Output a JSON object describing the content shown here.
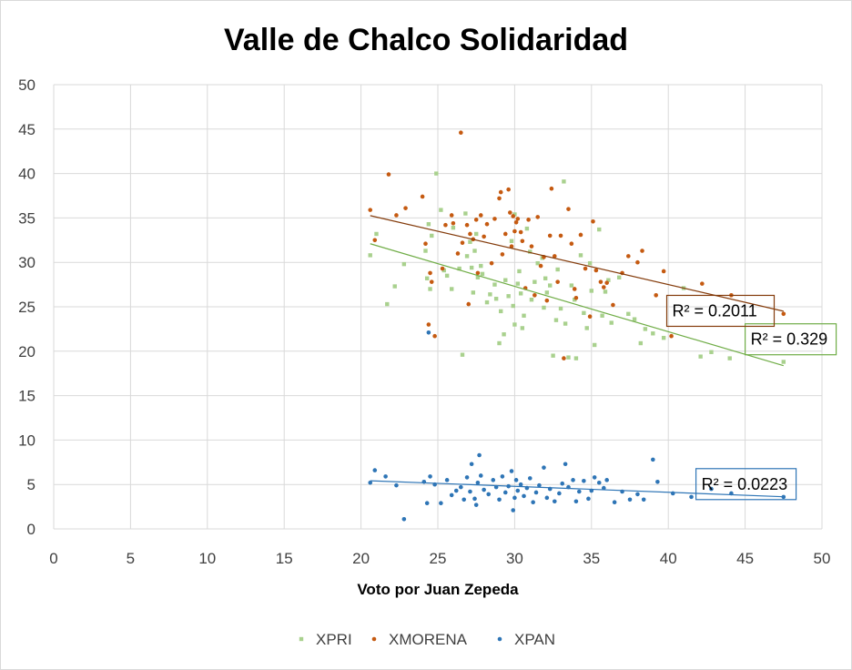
{
  "chart_data": {
    "type": "scatter",
    "title": "Valle de Chalco Solidaridad",
    "xlabel": "Voto por Juan Zepeda",
    "ylabel": "",
    "xlim": [
      0,
      50
    ],
    "ylim": [
      0,
      50
    ],
    "xticks": [
      "0",
      "5",
      "10",
      "15",
      "20",
      "25",
      "30",
      "35",
      "40",
      "45",
      "50"
    ],
    "yticks": [
      "0",
      "5",
      "10",
      "15",
      "20",
      "25",
      "30",
      "35",
      "40",
      "45",
      "50"
    ],
    "grid": true,
    "legend_position": "bottom",
    "series": [
      {
        "name": "XPRI",
        "color": "#a9d18e",
        "marker": "square",
        "trendline": {
          "slope": -0.51,
          "intercept": 42.6,
          "x_range": [
            20.6,
            47.5
          ],
          "color": "#70ad47"
        },
        "r2_label": "R² = 0.329",
        "points": [
          [
            20.6,
            30.8
          ],
          [
            21.0,
            33.2
          ],
          [
            21.7,
            25.3
          ],
          [
            22.2,
            27.3
          ],
          [
            22.8,
            29.8
          ],
          [
            24.2,
            31.3
          ],
          [
            24.3,
            28.2
          ],
          [
            24.4,
            34.3
          ],
          [
            24.5,
            27.0
          ],
          [
            24.6,
            33.0
          ],
          [
            24.9,
            40.0
          ],
          [
            25.2,
            35.9
          ],
          [
            25.4,
            29.1
          ],
          [
            25.6,
            28.5
          ],
          [
            25.9,
            27.0
          ],
          [
            26.0,
            33.9
          ],
          [
            26.4,
            29.3
          ],
          [
            26.6,
            19.6
          ],
          [
            26.8,
            35.5
          ],
          [
            26.9,
            30.7
          ],
          [
            27.1,
            32.3
          ],
          [
            27.2,
            29.4
          ],
          [
            27.3,
            26.6
          ],
          [
            27.4,
            31.3
          ],
          [
            27.5,
            33.2
          ],
          [
            27.6,
            28.3
          ],
          [
            27.8,
            29.6
          ],
          [
            27.9,
            28.7
          ],
          [
            28.2,
            25.5
          ],
          [
            28.4,
            26.4
          ],
          [
            28.7,
            27.5
          ],
          [
            28.8,
            25.9
          ],
          [
            29.0,
            20.9
          ],
          [
            29.1,
            24.5
          ],
          [
            29.3,
            21.9
          ],
          [
            29.4,
            28.0
          ],
          [
            29.6,
            26.2
          ],
          [
            29.8,
            32.4
          ],
          [
            29.9,
            25.1
          ],
          [
            30.0,
            23.0
          ],
          [
            30.0,
            35.4
          ],
          [
            30.2,
            27.6
          ],
          [
            30.3,
            29.0
          ],
          [
            30.4,
            26.5
          ],
          [
            30.5,
            22.6
          ],
          [
            30.6,
            24.0
          ],
          [
            30.8,
            33.8
          ],
          [
            31.0,
            31.2
          ],
          [
            31.1,
            25.8
          ],
          [
            31.3,
            27.8
          ],
          [
            31.5,
            29.9
          ],
          [
            31.8,
            30.5
          ],
          [
            31.9,
            24.9
          ],
          [
            32.0,
            28.2
          ],
          [
            32.1,
            26.6
          ],
          [
            32.3,
            27.4
          ],
          [
            32.5,
            19.5
          ],
          [
            32.7,
            23.5
          ],
          [
            32.8,
            29.2
          ],
          [
            33.0,
            24.8
          ],
          [
            33.2,
            39.1
          ],
          [
            33.3,
            23.1
          ],
          [
            33.5,
            19.3
          ],
          [
            33.7,
            27.4
          ],
          [
            33.9,
            25.8
          ],
          [
            34.0,
            19.2
          ],
          [
            34.3,
            30.8
          ],
          [
            34.5,
            24.3
          ],
          [
            34.7,
            22.6
          ],
          [
            34.9,
            29.9
          ],
          [
            35.0,
            26.8
          ],
          [
            35.2,
            20.7
          ],
          [
            35.5,
            33.7
          ],
          [
            35.7,
            24.0
          ],
          [
            35.9,
            26.7
          ],
          [
            36.1,
            28.0
          ],
          [
            36.3,
            23.2
          ],
          [
            36.8,
            28.3
          ],
          [
            37.4,
            24.2
          ],
          [
            37.8,
            23.6
          ],
          [
            38.2,
            20.9
          ],
          [
            38.5,
            22.5
          ],
          [
            39.0,
            22.0
          ],
          [
            39.7,
            21.5
          ],
          [
            41.0,
            27.1
          ],
          [
            42.1,
            19.4
          ],
          [
            42.8,
            19.9
          ],
          [
            44.0,
            19.2
          ],
          [
            47.5,
            18.8
          ]
        ]
      },
      {
        "name": "XMORENA",
        "color": "#c55a11",
        "marker": "circle",
        "trendline": {
          "slope": -0.4,
          "intercept": 43.5,
          "x_range": [
            20.6,
            47.5
          ],
          "color": "#843c0c"
        },
        "r2_label": "R² = 0.2011",
        "points": [
          [
            20.6,
            35.9
          ],
          [
            20.9,
            32.5
          ],
          [
            21.8,
            39.9
          ],
          [
            22.3,
            35.3
          ],
          [
            22.9,
            36.1
          ],
          [
            24.0,
            37.4
          ],
          [
            24.2,
            32.1
          ],
          [
            24.4,
            23.0
          ],
          [
            24.5,
            28.8
          ],
          [
            24.6,
            27.8
          ],
          [
            24.8,
            21.7
          ],
          [
            25.3,
            29.3
          ],
          [
            25.5,
            34.2
          ],
          [
            25.9,
            35.3
          ],
          [
            26.0,
            34.4
          ],
          [
            26.3,
            31.0
          ],
          [
            26.5,
            44.6
          ],
          [
            26.6,
            32.2
          ],
          [
            26.9,
            34.2
          ],
          [
            27.0,
            25.3
          ],
          [
            27.1,
            33.2
          ],
          [
            27.3,
            32.6
          ],
          [
            27.5,
            34.8
          ],
          [
            27.6,
            28.8
          ],
          [
            27.8,
            35.3
          ],
          [
            28.0,
            32.9
          ],
          [
            28.2,
            34.3
          ],
          [
            28.5,
            29.9
          ],
          [
            28.7,
            34.9
          ],
          [
            29.0,
            37.2
          ],
          [
            29.1,
            37.9
          ],
          [
            29.2,
            30.9
          ],
          [
            29.4,
            33.2
          ],
          [
            29.6,
            38.2
          ],
          [
            29.7,
            35.6
          ],
          [
            29.8,
            31.8
          ],
          [
            29.9,
            35.2
          ],
          [
            30.0,
            33.5
          ],
          [
            30.1,
            34.5
          ],
          [
            30.2,
            34.9
          ],
          [
            30.4,
            33.4
          ],
          [
            30.5,
            32.4
          ],
          [
            30.7,
            27.1
          ],
          [
            30.9,
            34.8
          ],
          [
            31.1,
            31.8
          ],
          [
            31.3,
            26.3
          ],
          [
            31.5,
            35.1
          ],
          [
            31.7,
            29.6
          ],
          [
            31.9,
            30.6
          ],
          [
            32.1,
            25.7
          ],
          [
            32.3,
            33.0
          ],
          [
            32.4,
            38.3
          ],
          [
            32.6,
            30.7
          ],
          [
            32.8,
            27.8
          ],
          [
            33.0,
            33.0
          ],
          [
            33.2,
            19.2
          ],
          [
            33.5,
            36.0
          ],
          [
            33.7,
            32.1
          ],
          [
            33.9,
            27.0
          ],
          [
            34.0,
            26.0
          ],
          [
            34.3,
            33.1
          ],
          [
            34.6,
            29.3
          ],
          [
            34.9,
            23.9
          ],
          [
            35.1,
            34.6
          ],
          [
            35.3,
            29.1
          ],
          [
            35.6,
            27.8
          ],
          [
            35.8,
            27.2
          ],
          [
            36.0,
            27.7
          ],
          [
            36.4,
            25.2
          ],
          [
            37.0,
            28.8
          ],
          [
            37.4,
            30.7
          ],
          [
            38.0,
            30.0
          ],
          [
            38.3,
            31.3
          ],
          [
            39.2,
            26.3
          ],
          [
            39.7,
            29.0
          ],
          [
            40.2,
            21.7
          ],
          [
            42.2,
            27.6
          ],
          [
            44.1,
            26.3
          ],
          [
            47.5,
            24.2
          ]
        ]
      },
      {
        "name": "XPAN",
        "color": "#2e75b6",
        "marker": "circle",
        "trendline": {
          "slope": -0.067,
          "intercept": 6.8,
          "x_range": [
            20.6,
            47.5
          ],
          "color": "#2e75b6"
        },
        "r2_label": "R² = 0.0223",
        "points": [
          [
            20.6,
            5.2
          ],
          [
            20.9,
            6.6
          ],
          [
            21.6,
            5.9
          ],
          [
            22.3,
            4.9
          ],
          [
            22.8,
            1.1
          ],
          [
            24.1,
            5.3
          ],
          [
            24.3,
            2.9
          ],
          [
            24.4,
            22.1
          ],
          [
            24.5,
            5.9
          ],
          [
            24.8,
            5.0
          ],
          [
            25.2,
            2.9
          ],
          [
            25.6,
            5.5
          ],
          [
            25.9,
            3.8
          ],
          [
            26.2,
            4.3
          ],
          [
            26.5,
            4.7
          ],
          [
            26.7,
            3.3
          ],
          [
            26.9,
            5.8
          ],
          [
            27.1,
            4.2
          ],
          [
            27.2,
            7.3
          ],
          [
            27.4,
            3.4
          ],
          [
            27.5,
            2.7
          ],
          [
            27.6,
            5.2
          ],
          [
            27.7,
            8.3
          ],
          [
            27.8,
            6.0
          ],
          [
            28.0,
            4.4
          ],
          [
            28.3,
            3.9
          ],
          [
            28.6,
            5.5
          ],
          [
            28.8,
            4.7
          ],
          [
            29.0,
            3.3
          ],
          [
            29.2,
            5.9
          ],
          [
            29.4,
            4.1
          ],
          [
            29.6,
            4.8
          ],
          [
            29.8,
            6.5
          ],
          [
            29.9,
            2.1
          ],
          [
            30.0,
            3.5
          ],
          [
            30.1,
            5.5
          ],
          [
            30.2,
            4.3
          ],
          [
            30.4,
            5.0
          ],
          [
            30.6,
            3.7
          ],
          [
            30.8,
            4.6
          ],
          [
            31.0,
            5.7
          ],
          [
            31.2,
            3.0
          ],
          [
            31.4,
            4.1
          ],
          [
            31.6,
            4.9
          ],
          [
            31.9,
            6.9
          ],
          [
            32.1,
            3.5
          ],
          [
            32.3,
            4.5
          ],
          [
            32.6,
            3.1
          ],
          [
            32.9,
            4.0
          ],
          [
            33.1,
            5.1
          ],
          [
            33.3,
            7.3
          ],
          [
            33.5,
            4.7
          ],
          [
            33.8,
            5.5
          ],
          [
            34.0,
            3.1
          ],
          [
            34.2,
            4.2
          ],
          [
            34.5,
            5.4
          ],
          [
            34.8,
            3.4
          ],
          [
            35.0,
            4.3
          ],
          [
            35.2,
            5.8
          ],
          [
            35.5,
            5.2
          ],
          [
            35.8,
            4.6
          ],
          [
            36.0,
            5.5
          ],
          [
            36.5,
            3.0
          ],
          [
            37.0,
            4.2
          ],
          [
            37.5,
            3.3
          ],
          [
            38.0,
            3.9
          ],
          [
            38.4,
            3.3
          ],
          [
            39.0,
            7.8
          ],
          [
            39.3,
            5.3
          ],
          [
            40.3,
            4.0
          ],
          [
            41.5,
            3.6
          ],
          [
            42.8,
            4.5
          ],
          [
            44.1,
            4.0
          ],
          [
            47.5,
            3.6
          ]
        ]
      }
    ]
  }
}
